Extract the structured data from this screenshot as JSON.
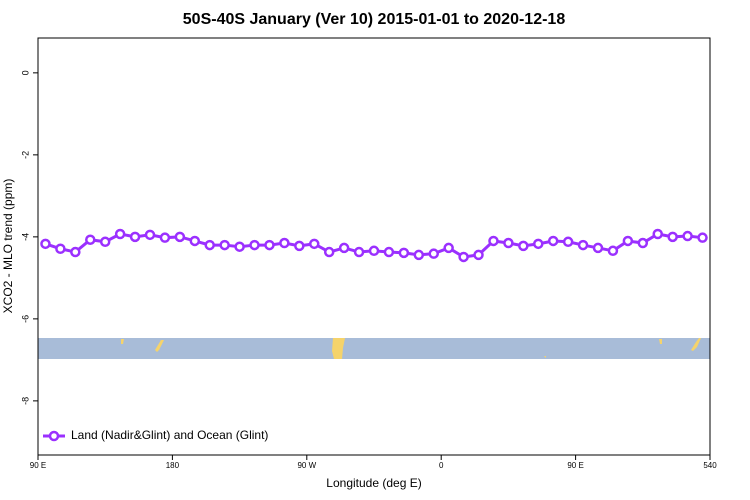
{
  "chart_data": {
    "type": "line",
    "title": "50S-40S January (Ver 10)   2015-01-01 to 2020-12-18",
    "x_label": "Longitude (deg E)",
    "y_label": "XCO2 - MLO trend (ppm)",
    "x": [
      95,
      105,
      115,
      125,
      135,
      145,
      155,
      165,
      175,
      185,
      195,
      205,
      215,
      225,
      235,
      245,
      255,
      265,
      275,
      285,
      295,
      305,
      315,
      325,
      335,
      345,
      355,
      365,
      375,
      385,
      395,
      405,
      415,
      425,
      435,
      445,
      455,
      465,
      475,
      485,
      495,
      505,
      515,
      525,
      535
    ],
    "series": [
      {
        "name": "Land (Nadir&Glint) and Ocean (Glint)",
        "color": "#9b30ff",
        "values": [
          -4.17,
          -4.29,
          -4.37,
          -4.07,
          -4.12,
          -3.93,
          -4.0,
          -3.95,
          -4.02,
          -4.0,
          -4.1,
          -4.2,
          -4.2,
          -4.24,
          -4.2,
          -4.2,
          -4.15,
          -4.22,
          -4.17,
          -4.37,
          -4.27,
          -4.37,
          -4.34,
          -4.37,
          -4.39,
          -4.44,
          -4.41,
          -4.27,
          -4.49,
          -4.44,
          -4.1,
          -4.15,
          -4.22,
          -4.17,
          -4.1,
          -4.12,
          -4.2,
          -4.27,
          -4.34,
          -4.1,
          -4.15,
          -3.93,
          -4.0,
          -3.98,
          -4.02
        ]
      }
    ],
    "xlim": [
      90,
      540
    ],
    "xticks": [
      {
        "value": 90,
        "label": "90 E"
      },
      180,
      {
        "value": 270,
        "label": "90 W"
      },
      {
        "value": 360,
        "label": "0"
      },
      {
        "value": 450,
        "label": "90 E"
      },
      540
    ],
    "ylim": [
      -9.32,
      0.85
    ],
    "yticks": [
      0,
      -2,
      -4,
      -6,
      -8
    ],
    "legend": "bottom-left"
  }
}
